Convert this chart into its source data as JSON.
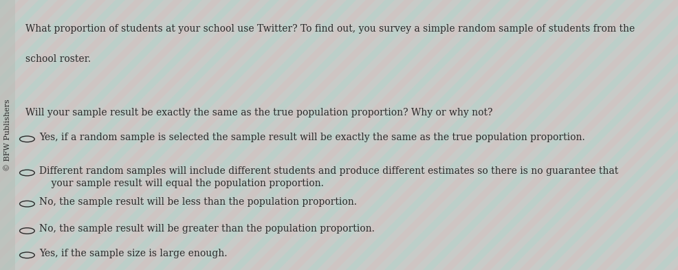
{
  "background_color": "#c8cec8",
  "stripe_color_1": "#b0d8d0",
  "stripe_color_2": "#e8c8c8",
  "sidebar_text": "© BFW Publishers",
  "intro_line1": "What proportion of students at your school use Twitter? To find out, you survey a simple random sample of students from the",
  "intro_line2": "school roster.",
  "question": "Will your sample result be exactly the same as the true population proportion? Why or why not?",
  "options": [
    "Yes, if a random sample is selected the sample result will be exactly the same as the true population proportion.",
    "Different random samples will include different students and produce different estimates so there is no guarantee that\n    your sample result will equal the population proportion.",
    "No, the sample result will be less than the population proportion.",
    "No, the sample result will be greater than the population proportion.",
    "Yes, if the sample size is large enough."
  ],
  "text_color": "#2a2a2a",
  "font_size_intro": 10.0,
  "font_size_question": 10.0,
  "font_size_options": 10.0,
  "font_size_sidebar": 8.0,
  "circle_color": "#2a2a2a"
}
